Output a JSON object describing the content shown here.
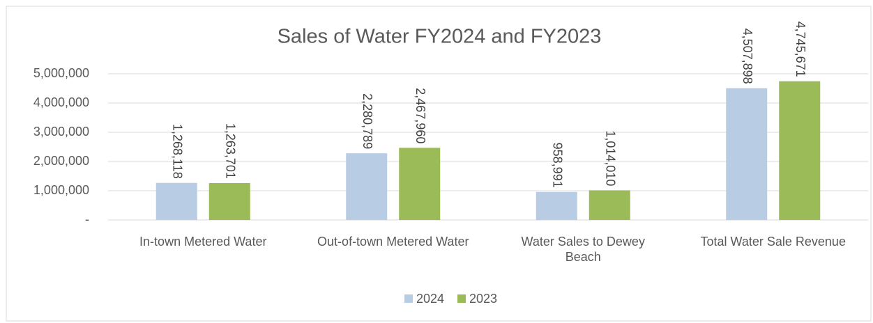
{
  "chart_data": {
    "type": "bar",
    "title": "Sales of Water FY2024 and FY2023",
    "categories": [
      "In-town Metered Water",
      "Out-of-town Metered Water",
      "Water Sales to Dewey Beach",
      "Total Water Sale Revenue"
    ],
    "series": [
      {
        "name": "2024",
        "color": "#b8cce4",
        "values": [
          1268118,
          2280789,
          958991,
          4507898
        ],
        "value_labels": [
          "1,268,118",
          "2,280,789",
          "958,991",
          "4,507,898"
        ]
      },
      {
        "name": "2023",
        "color": "#9bbb59",
        "values": [
          1263701,
          2467960,
          1014010,
          4745671
        ],
        "value_labels": [
          "1,263,701",
          "2,467,960",
          "1,014,010",
          "4,745,671"
        ]
      }
    ],
    "ylim": [
      0,
      5000000
    ],
    "yticks": [
      {
        "value": 0,
        "label": "-"
      },
      {
        "value": 1000000,
        "label": "1,000,000"
      },
      {
        "value": 2000000,
        "label": "2,000,000"
      },
      {
        "value": 3000000,
        "label": "3,000,000"
      },
      {
        "value": 4000000,
        "label": "4,000,000"
      },
      {
        "value": 5000000,
        "label": "5,000,000"
      }
    ],
    "grid": true,
    "legend": "bottom"
  }
}
